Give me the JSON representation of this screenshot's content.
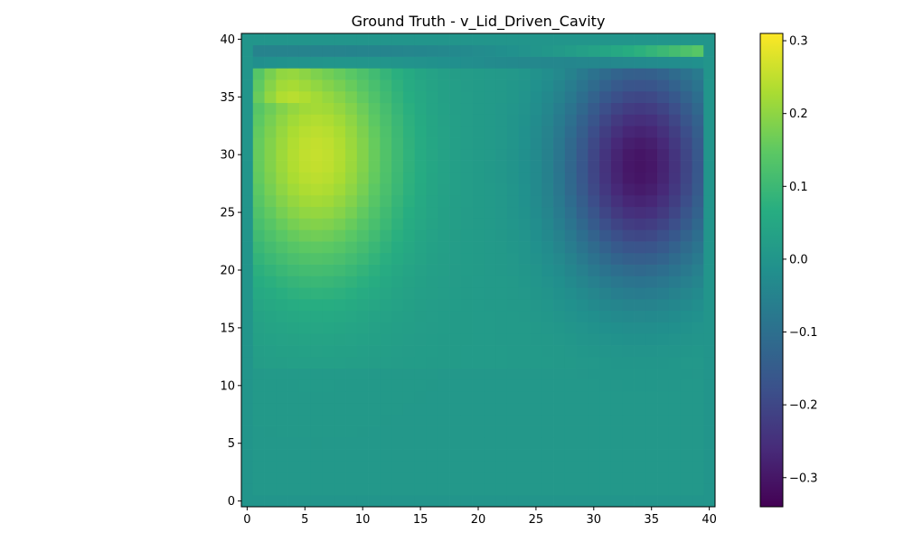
{
  "chart_data": {
    "type": "heatmap",
    "title": "Ground Truth - v_Lid_Driven_Cavity",
    "xlabel": "",
    "ylabel": "",
    "xlim": [
      -0.5,
      40.5
    ],
    "ylim": [
      -0.5,
      40.5
    ],
    "x_ticks": [
      "0",
      "5",
      "10",
      "15",
      "20",
      "25",
      "30",
      "35",
      "40"
    ],
    "y_ticks": [
      "0",
      "5",
      "10",
      "15",
      "20",
      "25",
      "30",
      "35",
      "40"
    ],
    "grid_size": [
      41,
      41
    ],
    "colormap": "viridis",
    "colorbar": {
      "range": [
        -0.34,
        0.31
      ],
      "ticks": [
        "0.3",
        "0.2",
        "0.1",
        "0.0",
        "−0.1",
        "−0.2",
        "−0.3"
      ]
    },
    "features": [
      {
        "name": "positive vortex",
        "x": 6,
        "y": 30,
        "value": 0.25
      },
      {
        "name": "negative vortex",
        "x": 34,
        "y": 29,
        "value": -0.3
      },
      {
        "name": "lid row",
        "y": 39,
        "x_range": [
          1,
          39
        ],
        "value_left": -0.05,
        "value_right": 0.14
      }
    ],
    "background_value": 0.0
  }
}
